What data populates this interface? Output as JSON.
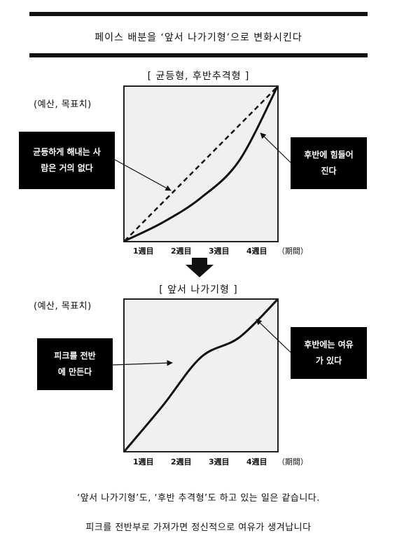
{
  "header": {
    "text": "페이스 배분을 ‘앞서 나가기형’으로 변화시킨다"
  },
  "top_chart": {
    "title": "[ 균등형, 후반추격형 ]",
    "ylabel": "(예산, 목표치)",
    "x_ticks": [
      "1週目",
      "2週目",
      "3週目",
      "4週目",
      "（期間）"
    ],
    "callout_left": "균등하게 해내는 사\n람은 거의 없다",
    "callout_right": "후반에 힘들어\n진다"
  },
  "bottom_chart": {
    "title": "[ 앞서 나가기형 ]",
    "ylabel": "(예산, 목표치)",
    "x_ticks": [
      "1週目",
      "2週目",
      "3週目",
      "4週目",
      "（期間）"
    ],
    "callout_left": "피크를 전반\n에 만든다",
    "callout_right": "후반에는 여유\n가 있다"
  },
  "captions": {
    "line1": "‘앞서 나가기형’도, ‘후반 추격형’도 하고 있는 일은 같습니다.",
    "line2": "피크를 전반부로 가져가면 정신적으로 여유가 생겨납니다"
  },
  "chart_data": [
    {
      "type": "line",
      "x": [
        0,
        1,
        2,
        3,
        4
      ],
      "categories": [
        "1週目",
        "2週目",
        "3週目",
        "4週目"
      ],
      "series": [
        {
          "values": [
            0,
            25,
            50,
            75,
            100
          ],
          "style": "dashed"
        },
        {
          "values": [
            0,
            12,
            28,
            52,
            100
          ],
          "style": "solid"
        }
      ],
      "ylim": [
        0,
        100
      ]
    },
    {
      "type": "line",
      "x": [
        0,
        1,
        2,
        3,
        4
      ],
      "categories": [
        "1週目",
        "2週目",
        "3週目",
        "4週目"
      ],
      "series": [
        {
          "values": [
            0,
            30,
            62,
            75,
            100
          ],
          "style": "solid"
        }
      ],
      "ylim": [
        0,
        100
      ]
    }
  ]
}
